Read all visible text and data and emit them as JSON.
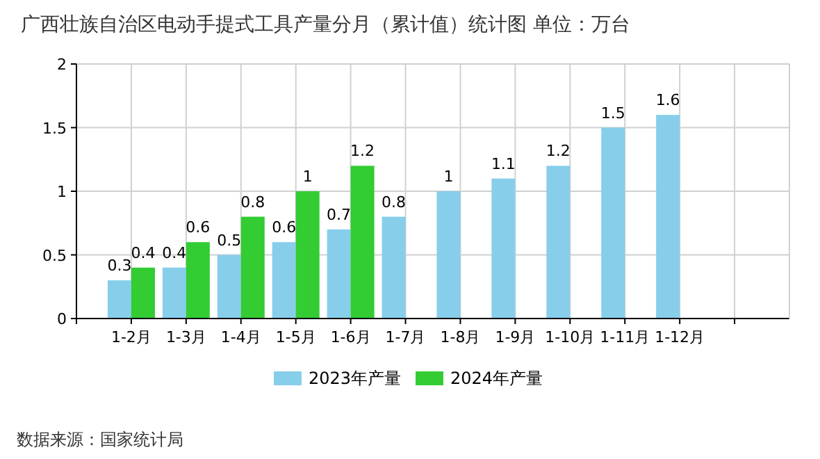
{
  "chart_data": {
    "type": "bar",
    "title": "广西壮族自治区电动手提式工具产量分月（累计值）统计图 单位：万台",
    "categories": [
      "1-2月",
      "1-3月",
      "1-4月",
      "1-5月",
      "1-6月",
      "1-7月",
      "1-8月",
      "1-9月",
      "1-10月",
      "1-11月",
      "1-12月"
    ],
    "series": [
      {
        "name": "2023年产量",
        "color": "#87ceeb",
        "values": [
          0.3,
          0.4,
          0.5,
          0.6,
          0.7,
          0.8,
          1,
          1.1,
          1.2,
          1.5,
          1.6
        ]
      },
      {
        "name": "2024年产量",
        "color": "#33cc33",
        "values": [
          0.4,
          0.6,
          0.8,
          1,
          1.2,
          null,
          null,
          null,
          null,
          null,
          null
        ]
      }
    ],
    "ylim": [
      0,
      2
    ],
    "yticks": [
      0,
      0.5,
      1,
      1.5,
      2
    ],
    "grid": true,
    "legend": "bottom",
    "data_labels": true,
    "annotations": [
      "数据来源：国家统计局"
    ]
  }
}
